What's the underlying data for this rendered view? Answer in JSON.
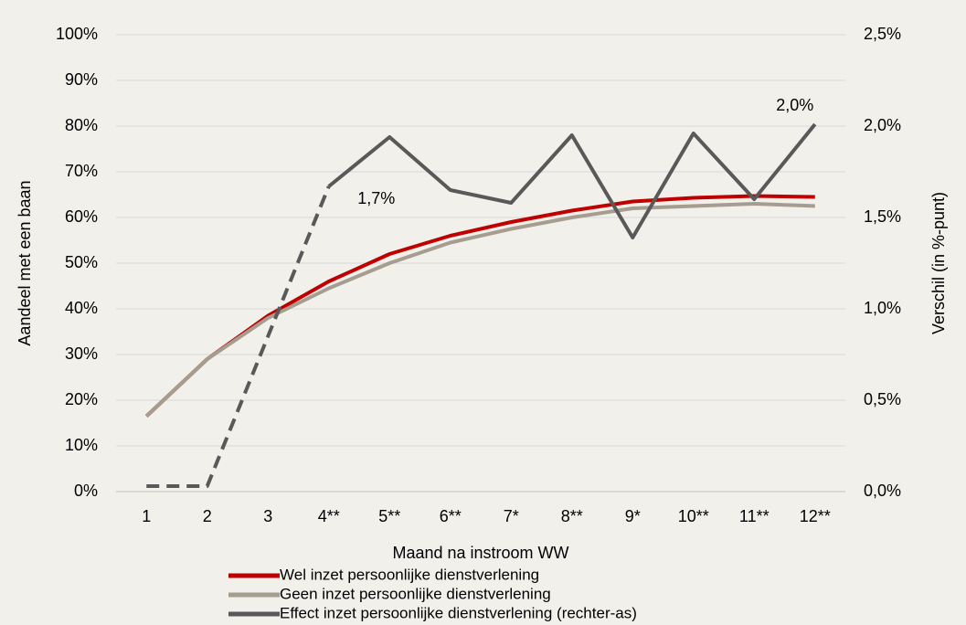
{
  "chart_data": {
    "type": "line",
    "categories": [
      "1",
      "2",
      "3",
      "4**",
      "5**",
      "6**",
      "7*",
      "8**",
      "9*",
      "10**",
      "11**",
      "12**"
    ],
    "series": [
      {
        "name": "Wel inzet persoonlijke dienstverlening",
        "color": "#c00000",
        "values": [
          16.5,
          29,
          38.5,
          46,
          52,
          56,
          59,
          61.5,
          63.5,
          64.3,
          64.7,
          64.5
        ]
      },
      {
        "name": "Geen inzet persoonlijke dienstverlening",
        "color": "#a59d8f",
        "values": [
          16.5,
          29,
          38,
          44.5,
          50,
          54.5,
          57.5,
          60,
          62,
          62.5,
          63,
          62.5
        ]
      },
      {
        "name": "Effect inzet persoonlijke dienstverlening (rechter-as)",
        "color": "#595959",
        "axis": "y2",
        "dashed_to": 3,
        "values": [
          0.03,
          0.03,
          0.85,
          1.67,
          1.94,
          1.65,
          1.58,
          1.95,
          1.39,
          1.96,
          1.6,
          2.01
        ],
        "value_labels": [
          null,
          null,
          null,
          "1,7%",
          null,
          null,
          null,
          null,
          null,
          null,
          null,
          "2,0%"
        ]
      }
    ],
    "xlabel": "Maand na instroom WW",
    "ylabel": "Aandeel met een baan",
    "y2label": "Verschil (in %-punt)",
    "ylim": [
      0,
      100
    ],
    "yticks": [
      {
        "value": 0,
        "label": "0%"
      },
      {
        "value": 10,
        "label": "10%"
      },
      {
        "value": 20,
        "label": "20%"
      },
      {
        "value": 30,
        "label": "30%"
      },
      {
        "value": 40,
        "label": "40%"
      },
      {
        "value": 50,
        "label": "50%"
      },
      {
        "value": 60,
        "label": "60%"
      },
      {
        "value": 70,
        "label": "70%"
      },
      {
        "value": 80,
        "label": "80%"
      },
      {
        "value": 90,
        "label": "90%"
      },
      {
        "value": 100,
        "label": "100%"
      }
    ],
    "y2lim": [
      0,
      2.5
    ],
    "y2ticks": [
      {
        "value": 0,
        "label": "0,0%"
      },
      {
        "value": 0.5,
        "label": "0,5%"
      },
      {
        "value": 1,
        "label": "1,0%"
      },
      {
        "value": 1.5,
        "label": "1,5%"
      },
      {
        "value": 2,
        "label": "2,0%"
      },
      {
        "value": 2.5,
        "label": "2,5%"
      }
    ],
    "grid": true,
    "legend": "bottom"
  }
}
